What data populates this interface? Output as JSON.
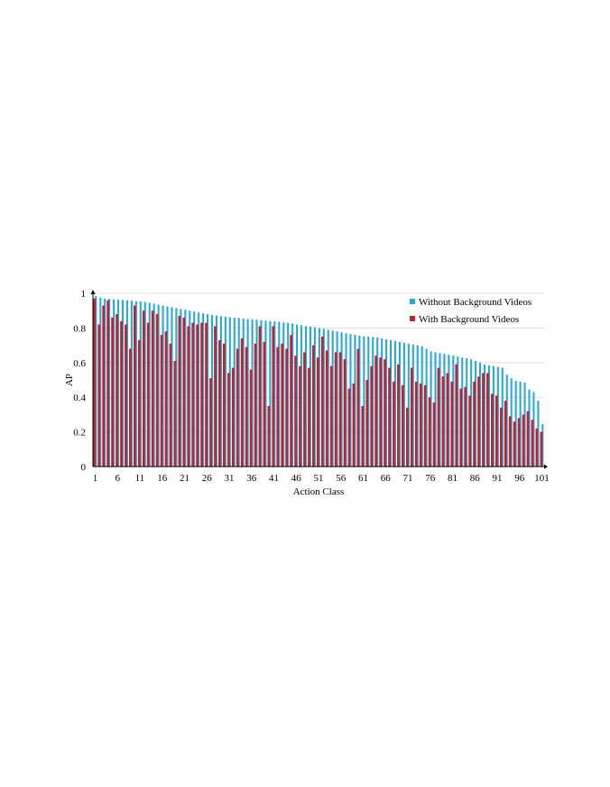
{
  "chart_data": {
    "type": "bar",
    "xlabel": "Action Class",
    "ylabel": "AP",
    "ylim": [
      0,
      1
    ],
    "yticks": [
      "0",
      "0.2",
      "0.4",
      "0.6",
      "0.8",
      "1"
    ],
    "xticks": [
      "1",
      "6",
      "11",
      "16",
      "21",
      "26",
      "31",
      "36",
      "41",
      "46",
      "51",
      "56",
      "61",
      "66",
      "71",
      "76",
      "81",
      "86",
      "91",
      "96",
      "101"
    ],
    "grid": true,
    "legend_position": "top-right",
    "categories": [
      "1",
      "2",
      "3",
      "4",
      "5",
      "6",
      "7",
      "8",
      "9",
      "10",
      "11",
      "12",
      "13",
      "14",
      "15",
      "16",
      "17",
      "18",
      "19",
      "20",
      "21",
      "22",
      "23",
      "24",
      "25",
      "26",
      "27",
      "28",
      "29",
      "30",
      "31",
      "32",
      "33",
      "34",
      "35",
      "36",
      "37",
      "38",
      "39",
      "40",
      "41",
      "42",
      "43",
      "44",
      "45",
      "46",
      "47",
      "48",
      "49",
      "50",
      "51",
      "52",
      "53",
      "54",
      "55",
      "56",
      "57",
      "58",
      "59",
      "60",
      "61",
      "62",
      "63",
      "64",
      "65",
      "66",
      "67",
      "68",
      "69",
      "70",
      "71",
      "72",
      "73",
      "74",
      "75",
      "76",
      "77",
      "78",
      "79",
      "80",
      "81",
      "82",
      "83",
      "84",
      "85",
      "86",
      "87",
      "88",
      "89",
      "90",
      "91",
      "92",
      "93",
      "94",
      "95",
      "96",
      "97",
      "98",
      "99",
      "100",
      "101"
    ],
    "series": [
      {
        "name": "Without Background Videos",
        "color": "#2CA6D8",
        "values": [
          0.985,
          0.975,
          0.97,
          0.968,
          0.965,
          0.963,
          0.962,
          0.96,
          0.958,
          0.955,
          0.953,
          0.95,
          0.945,
          0.94,
          0.935,
          0.93,
          0.925,
          0.92,
          0.915,
          0.91,
          0.905,
          0.9,
          0.895,
          0.89,
          0.885,
          0.88,
          0.875,
          0.872,
          0.868,
          0.865,
          0.862,
          0.86,
          0.858,
          0.855,
          0.852,
          0.85,
          0.848,
          0.845,
          0.842,
          0.84,
          0.838,
          0.835,
          0.832,
          0.83,
          0.826,
          0.82,
          0.815,
          0.81,
          0.808,
          0.805,
          0.8,
          0.795,
          0.79,
          0.785,
          0.78,
          0.775,
          0.77,
          0.765,
          0.76,
          0.755,
          0.752,
          0.75,
          0.748,
          0.745,
          0.74,
          0.735,
          0.73,
          0.725,
          0.72,
          0.715,
          0.71,
          0.705,
          0.7,
          0.695,
          0.68,
          0.665,
          0.66,
          0.655,
          0.65,
          0.645,
          0.64,
          0.635,
          0.63,
          0.625,
          0.62,
          0.61,
          0.6,
          0.59,
          0.585,
          0.58,
          0.575,
          0.57,
          0.53,
          0.51,
          0.495,
          0.49,
          0.485,
          0.445,
          0.43,
          0.38,
          0.245
        ]
      },
      {
        "name": "With Background Videos",
        "color": "#B22834",
        "values": [
          0.97,
          0.82,
          0.93,
          0.96,
          0.86,
          0.88,
          0.84,
          0.82,
          0.68,
          0.93,
          0.73,
          0.9,
          0.83,
          0.9,
          0.88,
          0.76,
          0.78,
          0.71,
          0.61,
          0.87,
          0.86,
          0.81,
          0.83,
          0.82,
          0.83,
          0.83,
          0.51,
          0.81,
          0.73,
          0.71,
          0.54,
          0.57,
          0.68,
          0.74,
          0.69,
          0.56,
          0.71,
          0.81,
          0.72,
          0.35,
          0.81,
          0.69,
          0.71,
          0.68,
          0.76,
          0.64,
          0.58,
          0.66,
          0.57,
          0.7,
          0.63,
          0.75,
          0.67,
          0.58,
          0.66,
          0.66,
          0.62,
          0.45,
          0.48,
          0.68,
          0.35,
          0.5,
          0.58,
          0.64,
          0.63,
          0.62,
          0.57,
          0.49,
          0.59,
          0.47,
          0.34,
          0.57,
          0.49,
          0.48,
          0.47,
          0.4,
          0.37,
          0.57,
          0.52,
          0.54,
          0.49,
          0.59,
          0.45,
          0.46,
          0.41,
          0.49,
          0.52,
          0.54,
          0.54,
          0.42,
          0.41,
          0.34,
          0.38,
          0.29,
          0.26,
          0.28,
          0.3,
          0.32,
          0.27,
          0.22,
          0.2
        ]
      }
    ]
  }
}
